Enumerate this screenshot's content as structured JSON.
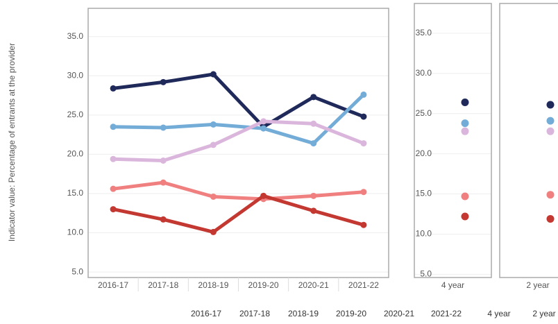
{
  "chart_data": [
    {
      "type": "line",
      "ylabel": "Indicator value: Percentage of  entrants at the provider",
      "categories": [
        "2016-17",
        "2017-18",
        "2018-19",
        "2019-20",
        "2020-21",
        "2021-22"
      ],
      "series": [
        {
          "color": "#1f2a5a",
          "values": [
            28.4,
            29.2,
            30.2,
            23.5,
            27.3,
            24.8
          ]
        },
        {
          "color": "#74acd8",
          "values": [
            23.5,
            23.4,
            23.8,
            23.3,
            21.4,
            27.6
          ]
        },
        {
          "color": "#dbb6dc",
          "values": [
            19.4,
            19.2,
            21.2,
            24.2,
            23.9,
            21.4
          ]
        },
        {
          "color": "#f08080",
          "values": [
            15.6,
            16.4,
            14.6,
            14.3,
            14.7,
            15.2
          ]
        },
        {
          "color": "#c43832",
          "values": [
            13.0,
            11.7,
            10.1,
            14.7,
            12.8,
            11.0
          ]
        }
      ],
      "ylim": [
        4.3,
        38.6
      ],
      "yticks": [
        {
          "value": 5,
          "label": "5.0"
        },
        {
          "value": 10,
          "label": "10.0"
        },
        {
          "value": 15,
          "label": "15.0"
        },
        {
          "value": 20,
          "label": "20.0"
        },
        {
          "value": 25,
          "label": "25.0"
        },
        {
          "value": 30,
          "label": "30.0"
        },
        {
          "value": 35,
          "label": "35.0"
        }
      ],
      "grid": true
    },
    {
      "type": "dot",
      "categories": [
        "4 year"
      ],
      "series": [
        {
          "color": "#1f2a5a",
          "values": [
            26.4
          ]
        },
        {
          "color": "#74acd8",
          "values": [
            23.8
          ]
        },
        {
          "color": "#dbb6dc",
          "values": [
            22.8
          ]
        },
        {
          "color": "#f08080",
          "values": [
            14.7
          ]
        },
        {
          "color": "#c43832",
          "values": [
            12.2
          ]
        }
      ],
      "ylim": [
        4.6,
        38.7
      ],
      "yticks": [
        {
          "value": 5,
          "label": "5.0"
        },
        {
          "value": 10,
          "label": "10.0"
        },
        {
          "value": 15,
          "label": "15.0"
        },
        {
          "value": 20,
          "label": "20.0"
        },
        {
          "value": 25,
          "label": "25.0"
        },
        {
          "value": 30,
          "label": "30.0"
        },
        {
          "value": 35,
          "label": "35.0"
        }
      ],
      "grid": true
    },
    {
      "type": "dot",
      "categories": [
        "2 year"
      ],
      "series": [
        {
          "color": "#1f2a5a",
          "values": [
            26.1
          ]
        },
        {
          "color": "#74acd8",
          "values": [
            24.1
          ]
        },
        {
          "color": "#dbb6dc",
          "values": [
            22.8
          ]
        },
        {
          "color": "#f08080",
          "values": [
            14.9
          ]
        },
        {
          "color": "#c43832",
          "values": [
            11.9
          ]
        }
      ],
      "ylim": [
        4.6,
        38.7
      ]
    }
  ],
  "footer": [
    "2016-17",
    "2017-18",
    "2018-19",
    "2019-20",
    "2020-21",
    "2021-22",
    "4 year",
    "2 year"
  ]
}
